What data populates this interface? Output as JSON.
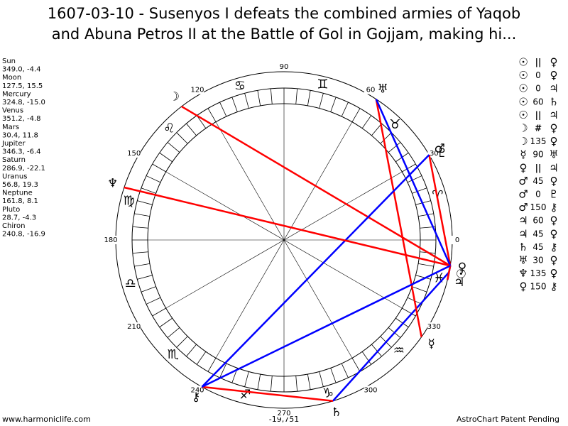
{
  "title": [
    "1607-03-10 - Susenyos I defeats the combined armies of Yaqob",
    "and Abuna Petros II at the Battle of Gol in Gojjam, making hi..."
  ],
  "planets": [
    {
      "name": "Sun",
      "glyph": "☉",
      "position": "349.0, -4.4"
    },
    {
      "name": "Moon",
      "glyph": "☽",
      "position": "127.5, 15.5"
    },
    {
      "name": "Mercury",
      "glyph": "☿",
      "position": "324.8, -15.0"
    },
    {
      "name": "Venus",
      "glyph": "♀",
      "position": "351.2, -4.8"
    },
    {
      "name": "Mars",
      "glyph": "♂",
      "position": "30.4, 11.8"
    },
    {
      "name": "Jupiter",
      "glyph": "♃",
      "position": "346.3, -6.4"
    },
    {
      "name": "Saturn",
      "glyph": "♄",
      "position": "286.9, -22.1"
    },
    {
      "name": "Uranus",
      "glyph": "♅",
      "position": "56.8, 19.3"
    },
    {
      "name": "Neptune",
      "glyph": "♆",
      "position": "161.8, 8.1"
    },
    {
      "name": "Pluto",
      "glyph": "♇",
      "position": "28.7, -4.3"
    },
    {
      "name": "Chiron",
      "glyph": "⚷",
      "position": "240.8, -16.9"
    }
  ],
  "aspects": [
    {
      "p1": "☉",
      "aspect": "||",
      "p2": "♀"
    },
    {
      "p1": "☉",
      "aspect": 0,
      "p2": "♀"
    },
    {
      "p1": "☉",
      "aspect": 0,
      "p2": "♃"
    },
    {
      "p1": "☉",
      "aspect": 60,
      "p2": "♄",
      "color": "#0000ff"
    },
    {
      "p1": "☉",
      "aspect": "||",
      "p2": "♃"
    },
    {
      "p1": "☽",
      "aspect": "#",
      "p2": "♀"
    },
    {
      "p1": "☽",
      "aspect": 135,
      "p2": "♀",
      "color": "#ff0000"
    },
    {
      "p1": "☿",
      "aspect": 90,
      "p2": "♅",
      "color": "#ff0000"
    },
    {
      "p1": "♀",
      "aspect": "||",
      "p2": "♃"
    },
    {
      "p1": "♂",
      "aspect": 45,
      "p2": "♀",
      "color": "#ff0000"
    },
    {
      "p1": "♂",
      "aspect": 0,
      "p2": "♇"
    },
    {
      "p1": "♂",
      "aspect": 150,
      "p2": "⚷",
      "color": "#0000ff"
    },
    {
      "p1": "♃",
      "aspect": 60,
      "p2": "♀",
      "color": "#0000ff"
    },
    {
      "p1": "♃",
      "aspect": 45,
      "p2": "♀",
      "color": "#ff0000"
    },
    {
      "p1": "♄",
      "aspect": 45,
      "p2": "⚷",
      "color": "#ff0000"
    },
    {
      "p1": "♅",
      "aspect": 30,
      "p2": "♀",
      "color": "#0000ff"
    },
    {
      "p1": "♆",
      "aspect": 135,
      "p2": "♀",
      "color": "#ff0000"
    },
    {
      "p1": "♀",
      "aspect": 150,
      "p2": "⚷",
      "color": "#0000ff"
    }
  ],
  "zodiac": [
    "♈",
    "♉",
    "♊",
    "♋",
    "♌",
    "♍",
    "♎",
    "♏",
    "♐",
    "♑",
    "♒",
    "♓"
  ],
  "degree_labels": [
    0,
    30,
    60,
    90,
    120,
    150,
    180,
    210,
    240,
    270,
    300,
    330
  ],
  "footer": {
    "left": "www.harmoniclife.com",
    "center": "-19,751",
    "right": "AstroChart Patent Pending"
  }
}
